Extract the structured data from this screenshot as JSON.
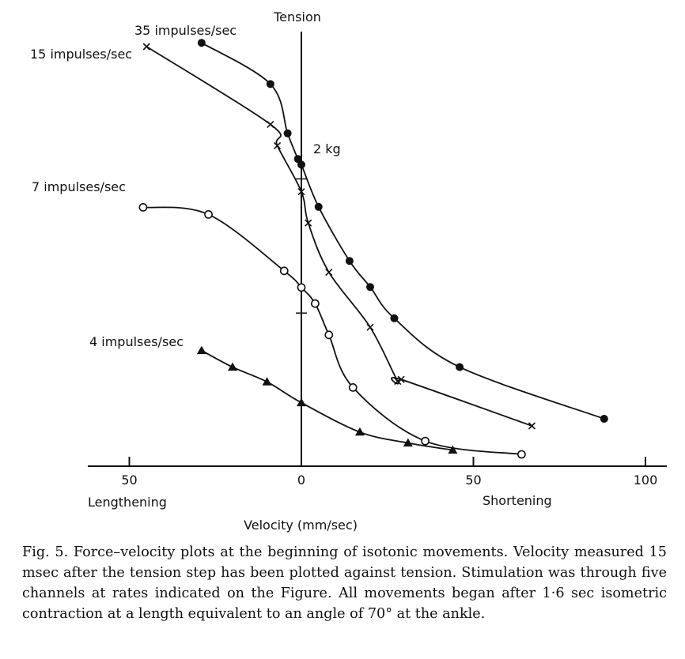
{
  "chart_data": {
    "type": "scatter",
    "title": "",
    "xlabel": "Velocity (mm/sec)",
    "ylabel": "Tension",
    "x_left_label": "Lengthening",
    "x_right_label": "Shortening",
    "xticks": [
      {
        "value": -50,
        "label": "50"
      },
      {
        "value": 0,
        "label": "0"
      },
      {
        "value": 50,
        "label": "50"
      },
      {
        "value": 100,
        "label": "100"
      }
    ],
    "xlim": [
      -62,
      107
    ],
    "ylim": [
      0,
      9.3
    ],
    "y_scale_label": "2 kg",
    "y_scale_marks": [
      6.06,
      3.23
    ],
    "grid": false,
    "series": [
      {
        "name": "35 impulses/sec",
        "marker": "filled-circle",
        "x": [
          -29,
          -9,
          -4,
          -1,
          0,
          5,
          14,
          20,
          27,
          46,
          88
        ],
        "y": [
          8.93,
          8.06,
          7.02,
          6.48,
          6.36,
          5.47,
          4.33,
          3.78,
          3.12,
          2.09,
          1.0
        ]
      },
      {
        "name": "15 impulses/sec",
        "marker": "cross",
        "x": [
          -45,
          -9,
          -7,
          0,
          2,
          8,
          20,
          28,
          29,
          67
        ],
        "y": [
          8.85,
          7.21,
          6.76,
          5.79,
          5.13,
          4.09,
          2.93,
          1.79,
          1.83,
          0.85
        ]
      },
      {
        "name": "7 impulses/sec",
        "marker": "open-circle",
        "x": [
          -46,
          -27,
          -5,
          0,
          4,
          8,
          15,
          36,
          64
        ],
        "y": [
          5.46,
          5.31,
          4.12,
          3.77,
          3.43,
          2.77,
          1.66,
          0.53,
          0.25
        ]
      },
      {
        "name": "4 impulses/sec",
        "marker": "filled-triangle",
        "x": [
          -29,
          -20,
          -10,
          0,
          17,
          31,
          44
        ],
        "y": [
          2.44,
          2.09,
          1.78,
          1.34,
          0.72,
          0.49,
          0.34
        ]
      }
    ]
  },
  "caption": "Fig. 5. Force–velocity plots at the beginning of isotonic movements. Velocity measured 15 msec after the tension step has been plotted against tension. Stimulation was through five channels at rates indicated on the Figure. All movements began after 1·6 sec isometric contraction at a length equivalent to an angle of 70° at the ankle."
}
